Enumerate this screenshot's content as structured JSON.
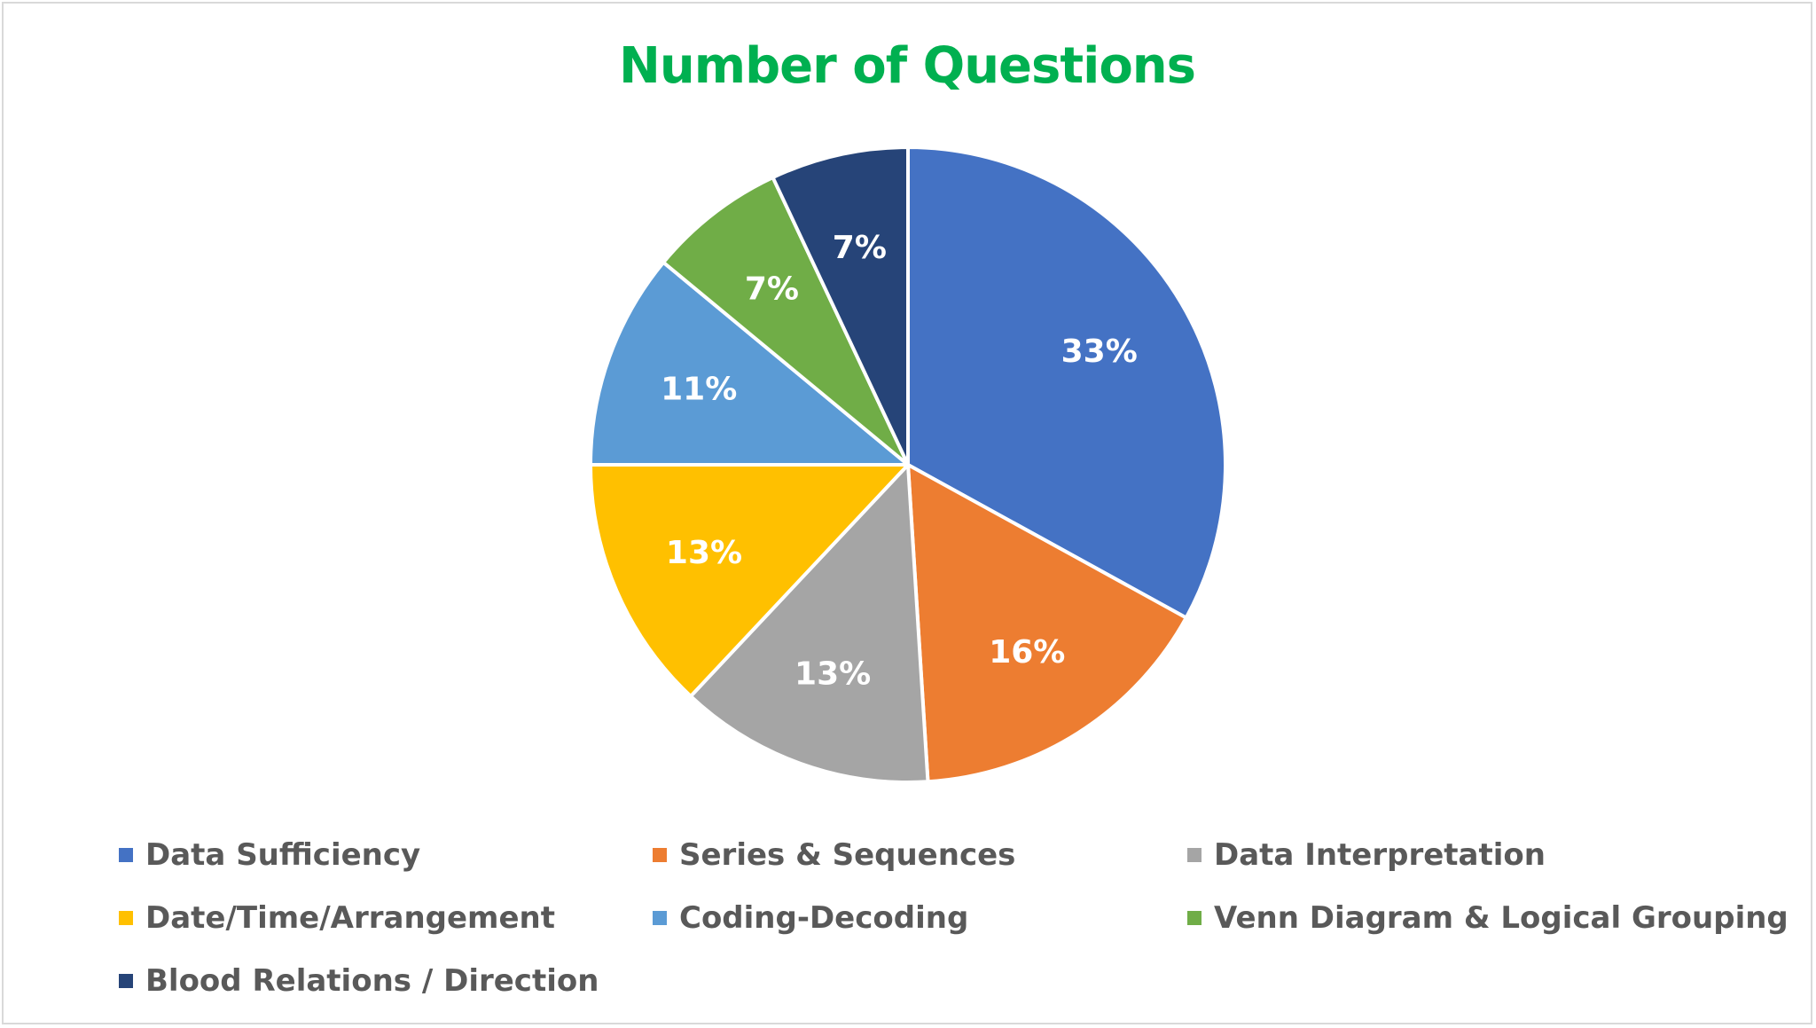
{
  "chart_data": {
    "type": "pie",
    "title": "Number of Questions",
    "title_color": "#00b050",
    "label_color": "#ffffff",
    "legend_position": "bottom",
    "start_angle_deg": 0,
    "direction": "clockwise",
    "slices": [
      {
        "name": "Data Sufficiency",
        "value": 33,
        "label": "33%",
        "color": "#4472c4"
      },
      {
        "name": "Series & Sequences",
        "value": 16,
        "label": "16%",
        "color": "#ed7d31"
      },
      {
        "name": "Data Interpretation",
        "value": 13,
        "label": "13%",
        "color": "#a5a5a5"
      },
      {
        "name": "Date/Time/Arrangement",
        "value": 13,
        "label": "13%",
        "color": "#ffc000"
      },
      {
        "name": "Coding-Decoding",
        "value": 11,
        "label": "11%",
        "color": "#5b9bd5"
      },
      {
        "name": "Venn Diagram & Logical Grouping",
        "value": 7,
        "label": "7%",
        "color": "#70ad47"
      },
      {
        "name": "Blood Relations / Direction",
        "value": 7,
        "label": "7%",
        "color": "#264478"
      }
    ]
  }
}
